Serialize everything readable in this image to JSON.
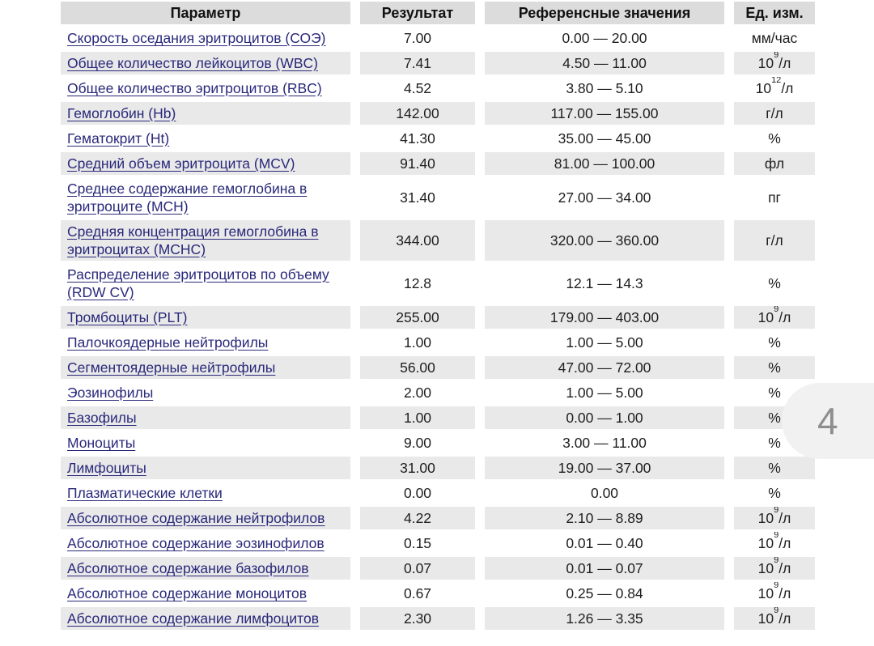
{
  "table": {
    "headers": {
      "param": "Параметр",
      "result": "Результат",
      "reference": "Референсные значения",
      "unit": "Ед. изм."
    },
    "rows": [
      {
        "param": "Скорость оседания эритроцитов (СОЭ)",
        "result": "7.00",
        "reference": "0.00 — 20.00",
        "unit": {
          "pre": "мм/час",
          "sup": "",
          "post": ""
        }
      },
      {
        "param": "Общее количество лейкоцитов (WBC)",
        "result": "7.41",
        "reference": "4.50 — 11.00",
        "unit": {
          "pre": "10",
          "sup": "9",
          "post": "/л"
        }
      },
      {
        "param": "Общее количество эритроцитов (RBC)",
        "result": "4.52",
        "reference": "3.80 — 5.10",
        "unit": {
          "pre": "10",
          "sup": "12",
          "post": "/л"
        }
      },
      {
        "param": "Гемоглобин (Hb)",
        "result": "142.00",
        "reference": "117.00 — 155.00",
        "unit": {
          "pre": "г/л",
          "sup": "",
          "post": ""
        }
      },
      {
        "param": "Гематокрит (Ht)",
        "result": "41.30",
        "reference": "35.00 — 45.00",
        "unit": {
          "pre": "%",
          "sup": "",
          "post": ""
        }
      },
      {
        "param": "Средний объем эритроцита (MCV)",
        "result": "91.40",
        "reference": "81.00 — 100.00",
        "unit": {
          "pre": "фл",
          "sup": "",
          "post": ""
        }
      },
      {
        "param": "Среднее содержание гемоглобина в эритроците (MCH)",
        "result": "31.40",
        "reference": "27.00 — 34.00",
        "unit": {
          "pre": "пг",
          "sup": "",
          "post": ""
        }
      },
      {
        "param": "Средняя концентрация гемоглобина в эритроцитах (MCHC)",
        "result": "344.00",
        "reference": "320.00 — 360.00",
        "unit": {
          "pre": "г/л",
          "sup": "",
          "post": ""
        }
      },
      {
        "param": "Распределение эритроцитов по объему (RDW CV)",
        "result": "12.8",
        "reference": "12.1 — 14.3",
        "unit": {
          "pre": "%",
          "sup": "",
          "post": ""
        }
      },
      {
        "param": "Тромбоциты (PLT)",
        "result": "255.00",
        "reference": "179.00 — 403.00",
        "unit": {
          "pre": "10",
          "sup": "9",
          "post": "/л"
        }
      },
      {
        "param": "Палочкоядерные нейтрофилы",
        "result": "1.00",
        "reference": "1.00 — 5.00",
        "unit": {
          "pre": "%",
          "sup": "",
          "post": ""
        }
      },
      {
        "param": "Сегментоядерные нейтрофилы",
        "result": "56.00",
        "reference": "47.00 — 72.00",
        "unit": {
          "pre": "%",
          "sup": "",
          "post": ""
        }
      },
      {
        "param": "Эозинофилы",
        "result": "2.00",
        "reference": "1.00 — 5.00",
        "unit": {
          "pre": "%",
          "sup": "",
          "post": ""
        }
      },
      {
        "param": "Базофилы",
        "result": "1.00",
        "reference": "0.00 — 1.00",
        "unit": {
          "pre": "%",
          "sup": "",
          "post": ""
        }
      },
      {
        "param": "Моноциты",
        "result": "9.00",
        "reference": "3.00 — 11.00",
        "unit": {
          "pre": "%",
          "sup": "",
          "post": ""
        }
      },
      {
        "param": "Лимфоциты",
        "result": "31.00",
        "reference": "19.00 — 37.00",
        "unit": {
          "pre": "%",
          "sup": "",
          "post": ""
        }
      },
      {
        "param": "Плазматические клетки",
        "result": "0.00",
        "reference": "0.00",
        "unit": {
          "pre": "%",
          "sup": "",
          "post": ""
        }
      },
      {
        "param": "Абсолютное содержание нейтрофилов",
        "result": "4.22",
        "reference": "2.10 — 8.89",
        "unit": {
          "pre": "10",
          "sup": "9",
          "post": "/л"
        }
      },
      {
        "param": "Абсолютное содержание эозинофилов",
        "result": "0.15",
        "reference": "0.01 — 0.40",
        "unit": {
          "pre": "10",
          "sup": "9",
          "post": "/л"
        }
      },
      {
        "param": "Абсолютное содержание базофилов",
        "result": "0.07",
        "reference": "0.01 — 0.07",
        "unit": {
          "pre": "10",
          "sup": "9",
          "post": "/л"
        }
      },
      {
        "param": "Абсолютное содержание моноцитов",
        "result": "0.67",
        "reference": "0.25 — 0.84",
        "unit": {
          "pre": "10",
          "sup": "9",
          "post": "/л"
        }
      },
      {
        "param": "Абсолютное содержание лимфоцитов",
        "result": "2.30",
        "reference": "1.26 — 3.35",
        "unit": {
          "pre": "10",
          "sup": "9",
          "post": "/л"
        }
      }
    ]
  },
  "page_badge": "4",
  "colors": {
    "link": "#29297b",
    "row_stripe": "#e9e9e9",
    "header_bg": "#dcdcdc",
    "badge_bg": "#f1f1f1",
    "badge_text": "#8e8e8e"
  }
}
